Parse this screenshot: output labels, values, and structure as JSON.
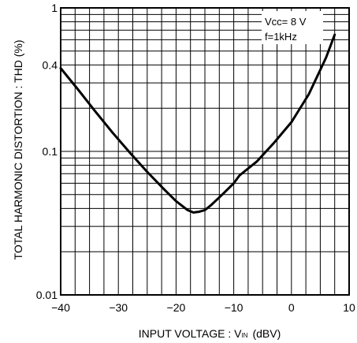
{
  "chart_data": {
    "type": "line",
    "xlabel_prefix": "INPUT VOLTAGE : V",
    "xlabel_sub": "IN",
    "xlabel_suffix": "(dBV)",
    "ylabel": "TOTAL HARMONIC DISTORTION : THD  (%)",
    "xlim": [
      -40,
      10
    ],
    "ylim": [
      0.01,
      1
    ],
    "yscale": "log",
    "grid": true,
    "x_ticks": [
      {
        "value": -40,
        "label": "−40"
      },
      {
        "value": -30,
        "label": "−30"
      },
      {
        "value": -20,
        "label": "−20"
      },
      {
        "value": -10,
        "label": "−10"
      },
      {
        "value": 0,
        "label": "0"
      },
      {
        "value": 10,
        "label": "10"
      }
    ],
    "y_ticks": [
      {
        "value": 1,
        "label": "1"
      },
      {
        "value": 0.4,
        "label": "0.4"
      },
      {
        "value": 0.1,
        "label": "0.1"
      },
      {
        "value": 0.01,
        "label": "0.01"
      }
    ],
    "annotations": [
      "Vcc= 8 V",
      "f=1kHz"
    ],
    "series": [
      {
        "x": [
          -40,
          -37,
          -34,
          -31,
          -28,
          -25,
          -22,
          -20,
          -18,
          -17,
          -16,
          -15,
          -14,
          -12,
          -10,
          -9,
          -6,
          -3,
          0,
          3,
          6,
          7.5
        ],
        "y": [
          0.38,
          0.27,
          0.19,
          0.135,
          0.098,
          0.072,
          0.054,
          0.045,
          0.039,
          0.0375,
          0.038,
          0.039,
          0.042,
          0.05,
          0.06,
          0.068,
          0.085,
          0.115,
          0.16,
          0.25,
          0.45,
          0.65
        ]
      }
    ]
  }
}
